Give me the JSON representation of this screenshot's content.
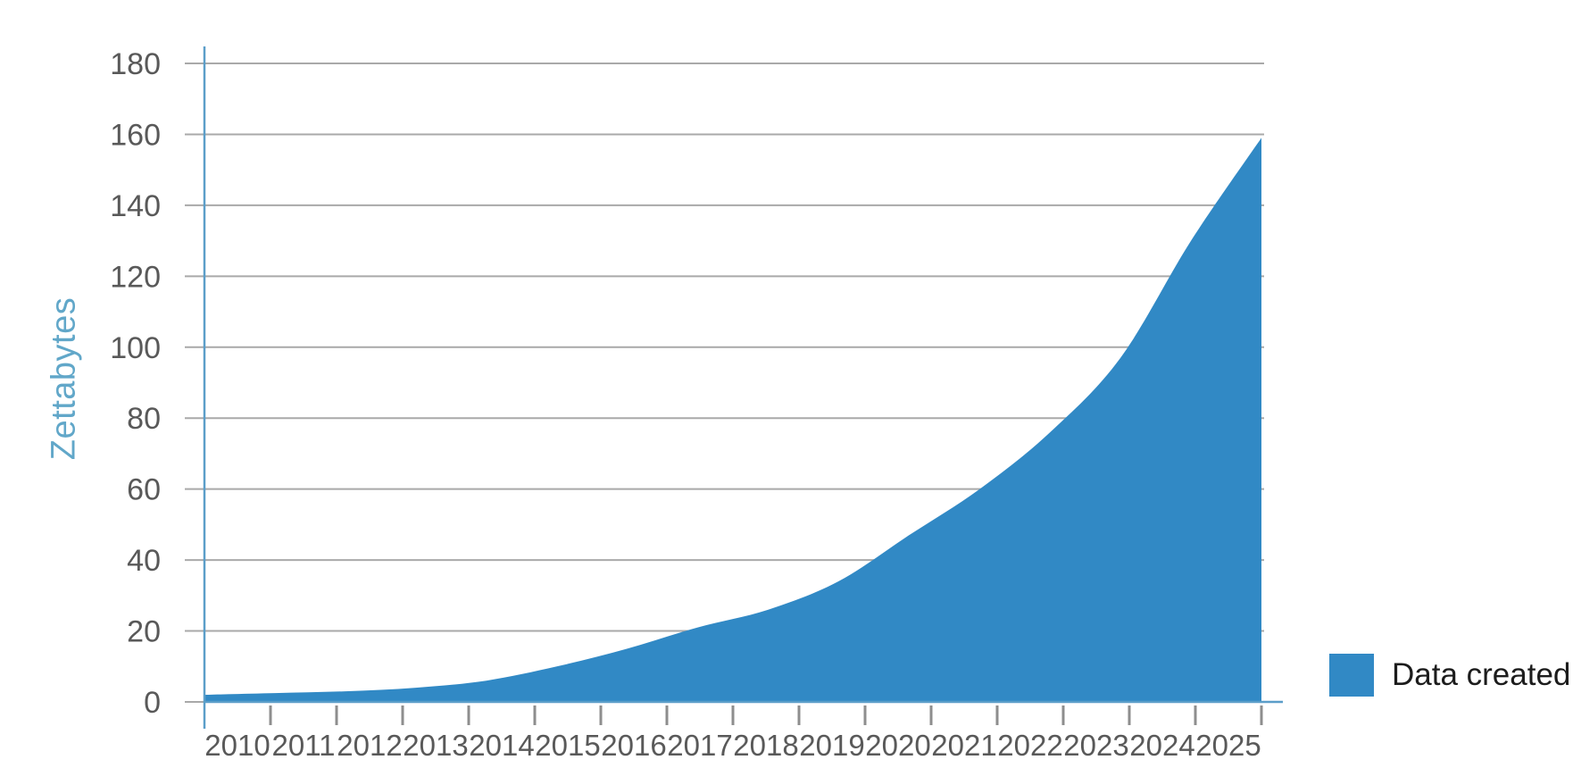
{
  "chart_data": {
    "type": "area",
    "title": "",
    "xlabel": "",
    "ylabel": "Zettabytes",
    "categories": [
      "2010",
      "2011",
      "2012",
      "2013",
      "2014",
      "2015",
      "2016",
      "2017",
      "2018",
      "2019",
      "2020",
      "2021",
      "2022",
      "2023",
      "2024",
      "2025"
    ],
    "series": [
      {
        "name": "Data created",
        "values": [
          2,
          2.5,
          3,
          4,
          6,
          10,
          15,
          21,
          26,
          34,
          47,
          60,
          76,
          97,
          130,
          159
        ]
      }
    ],
    "ylim": [
      0,
      180
    ],
    "ytick_values": [
      0,
      20,
      40,
      60,
      80,
      100,
      120,
      140,
      160,
      180
    ],
    "ytick_labels": [
      "0",
      "20",
      "40",
      "60",
      "80",
      "100",
      "120",
      "140",
      "160",
      "180"
    ],
    "grid": "horizontal",
    "legend_position": "bottom-right-outside",
    "curve": "smooth-spline"
  },
  "legend": {
    "label": "Data created"
  },
  "colors": {
    "background": "#FFFFFF",
    "area_fill": "#3189C5",
    "axis": "#5B9EC9",
    "gridline": "#A9A9A9",
    "x_tick": "#8E8E8E",
    "tick_label": "#595959",
    "ylabel_text": "#61A7C9",
    "legend_text": "#1C1C1C"
  }
}
